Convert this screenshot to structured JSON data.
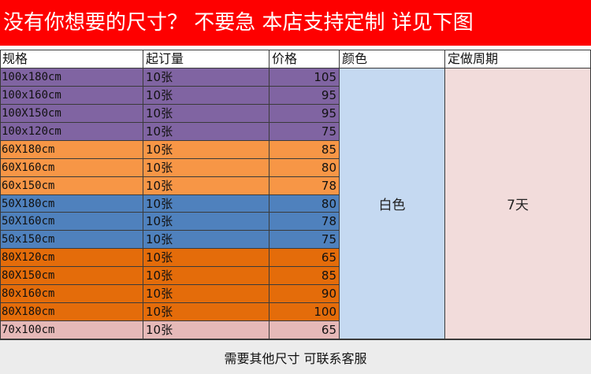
{
  "banner": {
    "text": "没有你想要的尺寸？  不要急  本店支持定制  详见下图"
  },
  "table": {
    "headers": [
      "规格",
      "起订量",
      "价格",
      "颜色",
      "定做周期"
    ],
    "rows": [
      {
        "size": "100x180cm",
        "qty": "10张",
        "price": "105",
        "group": "purple"
      },
      {
        "size": "100x160cm",
        "qty": "10张",
        "price": "95",
        "group": "purple"
      },
      {
        "size": "100X150cm",
        "qty": "10张",
        "price": "95",
        "group": "purple"
      },
      {
        "size": "100x120cm",
        "qty": "10张",
        "price": "75",
        "group": "purple"
      },
      {
        "size": "60X180cm",
        "qty": "10张",
        "price": "85",
        "group": "light-orange"
      },
      {
        "size": "60X160cm",
        "qty": "10张",
        "price": "80",
        "group": "light-orange"
      },
      {
        "size": "60x150cm",
        "qty": "10张",
        "price": "78",
        "group": "light-orange"
      },
      {
        "size": "50X180cm",
        "qty": "10张",
        "price": "80",
        "group": "blue"
      },
      {
        "size": "50X160cm",
        "qty": "10张",
        "price": "78",
        "group": "blue"
      },
      {
        "size": "50x150cm",
        "qty": "10张",
        "price": "75",
        "group": "blue"
      },
      {
        "size": "80X120cm",
        "qty": "10张",
        "price": "65",
        "group": "dark-orange"
      },
      {
        "size": "80X150cm",
        "qty": "10张",
        "price": "85",
        "group": "dark-orange"
      },
      {
        "size": "80x160cm",
        "qty": "10张",
        "price": "90",
        "group": "dark-orange"
      },
      {
        "size": "80X180cm",
        "qty": "10张",
        "price": "100",
        "group": "dark-orange"
      },
      {
        "size": "70x100cm",
        "qty": "10张",
        "price": "65",
        "group": "pink"
      }
    ],
    "color_value": "白色",
    "lead_time_value": "7天"
  },
  "footer": {
    "text": "需要其他尺寸  可联系客服"
  },
  "colors": {
    "banner": "#fe0000",
    "purple": "#8064a2",
    "light-orange": "#f79646",
    "blue": "#4f81bd",
    "dark-orange": "#e46c0a",
    "pink": "#e6b9b8",
    "color_column": "#c5d9f1",
    "lead_time_column": "#f2dcdb",
    "footer": "#ececec"
  }
}
